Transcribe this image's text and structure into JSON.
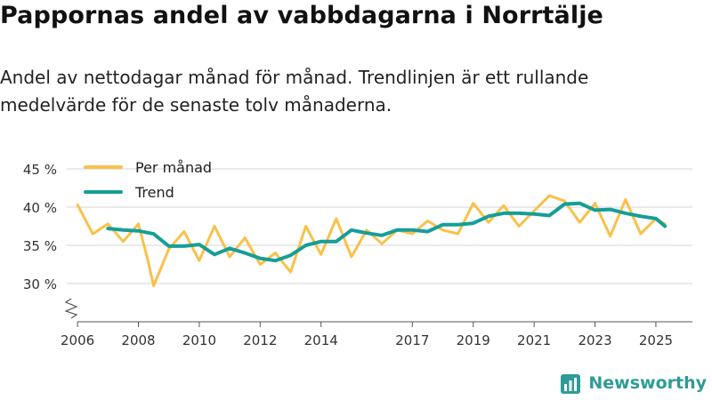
{
  "header": {
    "title": "Pappornas andel av vabbdagarna i Norrtälje",
    "subtitle": "Andel av nettodagar månad för månad. Trendlinjen är ett rullande medelvärde för de senaste tolv månaderna."
  },
  "brand": {
    "name": "Newsworthy",
    "icon": "newsworthy-logo-icon",
    "color": "#2e9c96"
  },
  "colors": {
    "monthly": "#f9c14a",
    "trend": "#159e98",
    "grid": "#d4d4d4",
    "axis": "#555555"
  },
  "chart_data": {
    "type": "line",
    "title": "Pappornas andel av vabbdagarna i Norrtälje",
    "xlabel": "",
    "ylabel": "",
    "ylim": [
      25,
      45
    ],
    "yticks": [
      30,
      35,
      40,
      45
    ],
    "ytick_labels": [
      "30 %",
      "35 %",
      "40 %",
      "45 %"
    ],
    "axis_break": true,
    "xlim": [
      2005.5,
      2026.2
    ],
    "xticks": [
      2006,
      2008,
      2010,
      2012,
      2014,
      2017,
      2019,
      2021,
      2023,
      2025
    ],
    "xtick_labels": [
      "2006",
      "2008",
      "2010",
      "2012",
      "2014",
      "2017",
      "2019",
      "2021",
      "2023",
      "2025"
    ],
    "legend": {
      "position": "top-left",
      "entries": [
        "Per månad",
        "Trend"
      ]
    },
    "series": [
      {
        "name": "Per månad",
        "x": [
          2006.0,
          2006.5,
          2007.0,
          2007.5,
          2008.0,
          2008.3,
          2008.5,
          2009.0,
          2009.5,
          2010.0,
          2010.5,
          2011.0,
          2011.5,
          2012.0,
          2012.5,
          2013.0,
          2013.5,
          2014.0,
          2014.5,
          2015.0,
          2015.5,
          2016.0,
          2016.5,
          2017.0,
          2017.5,
          2018.0,
          2018.5,
          2019.0,
          2019.5,
          2020.0,
          2020.5,
          2021.0,
          2021.5,
          2022.0,
          2022.5,
          2023.0,
          2023.5,
          2024.0,
          2024.5,
          2025.0,
          2025.3
        ],
        "values": [
          40.3,
          36.5,
          37.8,
          35.5,
          37.8,
          33.2,
          29.7,
          34.5,
          36.8,
          33.0,
          37.5,
          33.5,
          36.0,
          32.5,
          34.0,
          31.5,
          37.5,
          33.8,
          38.5,
          33.5,
          37.0,
          35.2,
          37.0,
          36.5,
          38.2,
          37.0,
          36.5,
          40.5,
          38.0,
          40.2,
          37.5,
          39.5,
          41.5,
          40.8,
          38.0,
          40.5,
          36.2,
          41.0,
          36.5,
          38.5,
          37.8
        ]
      },
      {
        "name": "Trend",
        "x": [
          2007.0,
          2007.5,
          2008.0,
          2008.5,
          2009.0,
          2009.5,
          2010.0,
          2010.5,
          2011.0,
          2011.5,
          2012.0,
          2012.5,
          2013.0,
          2013.5,
          2014.0,
          2014.5,
          2015.0,
          2015.5,
          2016.0,
          2016.5,
          2017.0,
          2017.5,
          2018.0,
          2018.5,
          2019.0,
          2019.5,
          2020.0,
          2020.5,
          2021.0,
          2021.5,
          2022.0,
          2022.5,
          2023.0,
          2023.5,
          2024.0,
          2024.5,
          2025.0,
          2025.3
        ],
        "values": [
          37.2,
          37.0,
          36.9,
          36.5,
          34.9,
          34.9,
          35.1,
          33.8,
          34.6,
          34.0,
          33.3,
          33.0,
          33.7,
          35.0,
          35.5,
          35.5,
          37.0,
          36.6,
          36.3,
          37.0,
          37.0,
          36.8,
          37.7,
          37.7,
          37.9,
          38.8,
          39.2,
          39.2,
          39.1,
          38.9,
          40.4,
          40.5,
          39.6,
          39.7,
          39.2,
          38.8,
          38.5,
          37.5
        ]
      }
    ]
  }
}
